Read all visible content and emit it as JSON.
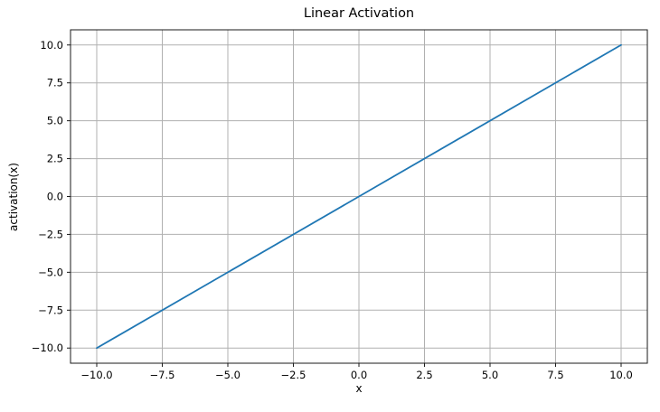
{
  "chart_data": {
    "type": "line",
    "title": "Linear Activation",
    "xlabel": "x",
    "ylabel": "activation(x)",
    "xlim": [
      -11,
      11
    ],
    "ylim": [
      -11,
      11
    ],
    "grid": true,
    "legend_position": "none",
    "xticks": [
      {
        "v": -10.0,
        "label": "−10.0"
      },
      {
        "v": -7.5,
        "label": "−7.5"
      },
      {
        "v": -5.0,
        "label": "−5.0"
      },
      {
        "v": -2.5,
        "label": "−2.5"
      },
      {
        "v": 0.0,
        "label": "0.0"
      },
      {
        "v": 2.5,
        "label": "2.5"
      },
      {
        "v": 5.0,
        "label": "5.0"
      },
      {
        "v": 7.5,
        "label": "7.5"
      },
      {
        "v": 10.0,
        "label": "10.0"
      }
    ],
    "yticks": [
      {
        "v": -10.0,
        "label": "−10.0"
      },
      {
        "v": -7.5,
        "label": "−7.5"
      },
      {
        "v": -5.0,
        "label": "−5.0"
      },
      {
        "v": -2.5,
        "label": "−2.5"
      },
      {
        "v": 0.0,
        "label": "0.0"
      },
      {
        "v": 2.5,
        "label": "2.5"
      },
      {
        "v": 5.0,
        "label": "5.0"
      },
      {
        "v": 7.5,
        "label": "7.5"
      },
      {
        "v": 10.0,
        "label": "10.0"
      }
    ],
    "series": [
      {
        "color": "#1f77b4",
        "x": [
          -10,
          10
        ],
        "y": [
          -10,
          10
        ]
      }
    ],
    "colors": {
      "grid": "#b0b0b0",
      "spine": "#1a1a1a",
      "tick": "#1a1a1a",
      "text": "#000000",
      "background": "#ffffff"
    }
  }
}
